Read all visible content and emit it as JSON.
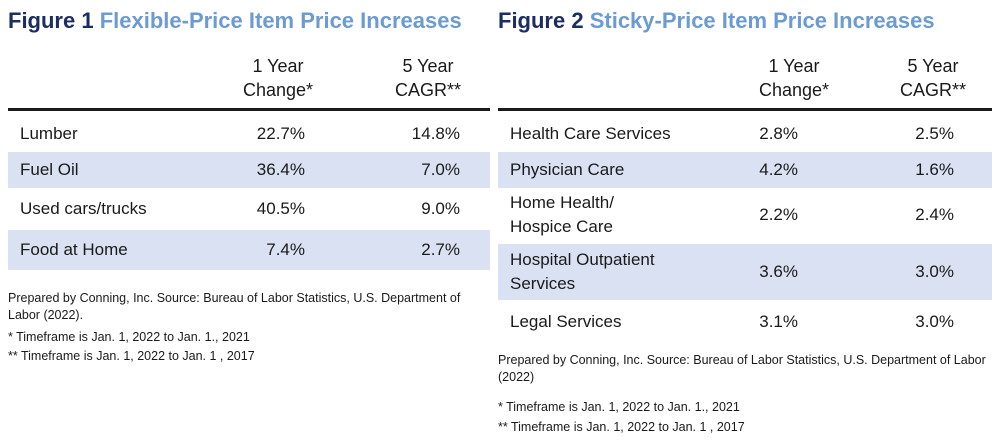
{
  "figures": [
    {
      "number": "Figure 1",
      "title": "Flexible-Price Item Price Increases",
      "columns": [
        "1 Year\nChange*",
        "5 Year\nCAGR**"
      ],
      "rows": [
        {
          "label": "Lumber",
          "one_year": "22.7%",
          "five_year": "14.8%"
        },
        {
          "label": "Fuel Oil",
          "one_year": "36.4%",
          "five_year": "7.0%"
        },
        {
          "label": "Used cars/trucks",
          "one_year": "40.5%",
          "five_year": "9.0%"
        },
        {
          "label": "Food at Home",
          "one_year": "7.4%",
          "five_year": "2.7%"
        }
      ],
      "source": "Prepared by Conning, Inc. Source: Bureau of Labor Statistics, U.S. Department of Labor (2022).",
      "footnotes": [
        "* Timeframe is Jan. 1, 2022 to Jan. 1., 2021",
        "** Timeframe is Jan. 1, 2022 to Jan. 1 , 2017"
      ]
    },
    {
      "number": "Figure 2",
      "title": "Sticky-Price Item Price Increases",
      "columns": [
        "1 Year\nChange*",
        "5 Year\nCAGR**"
      ],
      "rows": [
        {
          "label": "Health Care Services",
          "one_year": "2.8%",
          "five_year": "2.5%"
        },
        {
          "label": "Physician Care",
          "one_year": "4.2%",
          "five_year": "1.6%"
        },
        {
          "label": "Home Health/\nHospice Care",
          "one_year": "2.2%",
          "five_year": "2.4%"
        },
        {
          "label": "Hospital Outpatient\nServices",
          "one_year": "3.6%",
          "five_year": "3.0%"
        },
        {
          "label": "Legal Services",
          "one_year": "3.1%",
          "five_year": "3.0%"
        }
      ],
      "source": "Prepared by Conning, Inc. Source: Bureau of Labor Statistics, U.S. Department of Labor (2022)",
      "footnotes": [
        "* Timeframe is Jan. 1, 2022 to Jan. 1., 2021",
        "** Timeframe is Jan. 1, 2022 to Jan. 1 , 2017"
      ]
    }
  ],
  "colors": {
    "title_number": "#1c2d64",
    "title_name": "#6b9bd2",
    "row_shade": "#d9e1f2"
  },
  "chart_data": [
    {
      "type": "table",
      "title": "Flexible-Price Item Price Increases",
      "columns": [
        "1 Year Change*",
        "5 Year CAGR**"
      ],
      "categories": [
        "Lumber",
        "Fuel Oil",
        "Used cars/trucks",
        "Food at Home"
      ],
      "series": [
        {
          "name": "1 Year Change*",
          "values": [
            22.7,
            36.4,
            40.5,
            7.4
          ]
        },
        {
          "name": "5 Year CAGR**",
          "values": [
            14.8,
            7.0,
            9.0,
            2.7
          ]
        }
      ]
    },
    {
      "type": "table",
      "title": "Sticky-Price Item Price Increases",
      "columns": [
        "1 Year Change*",
        "5 Year CAGR**"
      ],
      "categories": [
        "Health Care Services",
        "Physician Care",
        "Home Health/ Hospice Care",
        "Hospital Outpatient Services",
        "Legal Services"
      ],
      "series": [
        {
          "name": "1 Year Change*",
          "values": [
            2.8,
            4.2,
            2.2,
            3.6,
            3.1
          ]
        },
        {
          "name": "5 Year CAGR**",
          "values": [
            2.5,
            1.6,
            2.4,
            3.0,
            3.0
          ]
        }
      ]
    }
  ]
}
